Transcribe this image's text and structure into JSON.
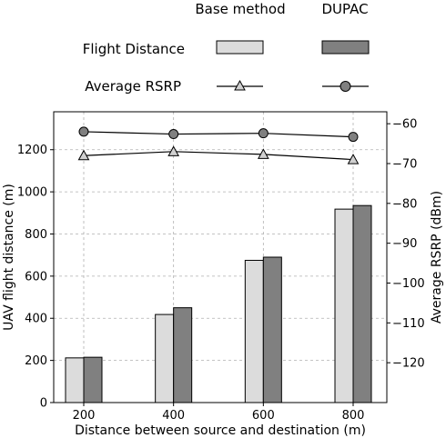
{
  "chart_data": {
    "type": "bar",
    "categories": [
      "200",
      "400",
      "600",
      "800"
    ],
    "xlabel": "Distance between source and destination (m)",
    "ylabel_left": "UAV flight distance (m)",
    "ylabel_right": "Average RSRP (dBm)",
    "ylim_left": [
      0,
      1380
    ],
    "yticks_left": [
      0,
      200,
      400,
      600,
      800,
      1000,
      1200
    ],
    "ylim_right": [
      -130,
      -57
    ],
    "yticks_right": [
      -60,
      -70,
      -80,
      -90,
      -100,
      -110,
      -120
    ],
    "yticklabels_right": [
      "−60",
      "−70",
      "−80",
      "−90",
      "−100",
      "−110",
      "−120"
    ],
    "grid": true,
    "legend_columns": [
      "Base method",
      "DUPAC"
    ],
    "legend_rows": [
      "Flight Distance",
      "Average RSRP"
    ],
    "series": [
      {
        "name": "Flight Distance",
        "method": "Base method",
        "kind": "bar",
        "axis": "left",
        "color": "#dcdcdc",
        "values": [
          212,
          418,
          675,
          918
        ]
      },
      {
        "name": "Flight Distance",
        "method": "DUPAC",
        "kind": "bar",
        "axis": "left",
        "color": "#808080",
        "values": [
          215,
          450,
          690,
          935
        ]
      },
      {
        "name": "Average RSRP",
        "method": "Base method",
        "kind": "line",
        "axis": "right",
        "marker": "triangle",
        "color": "#d0d0d0",
        "values": [
          -68,
          -67,
          -67.7,
          -69
        ]
      },
      {
        "name": "Average RSRP",
        "method": "DUPAC",
        "kind": "line",
        "axis": "right",
        "marker": "circle",
        "color": "#808080",
        "values": [
          -62,
          -62.6,
          -62.4,
          -63.3
        ]
      }
    ]
  }
}
